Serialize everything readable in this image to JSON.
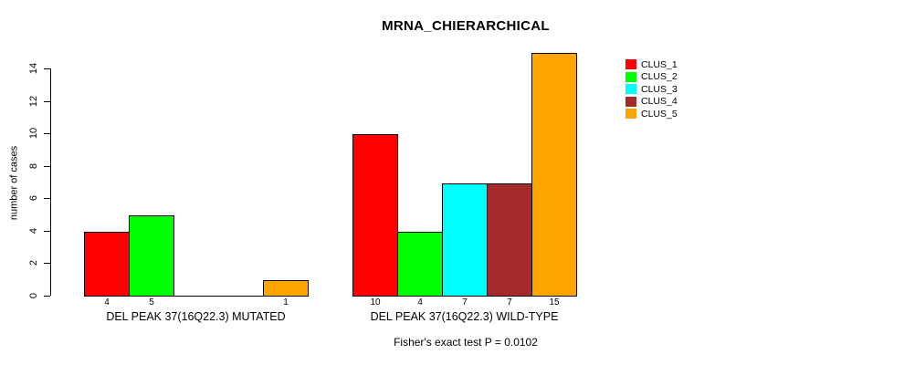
{
  "chart_data": {
    "type": "bar",
    "title": "MRNA_CHIERARCHICAL",
    "ylabel": "number of cases",
    "ylim": [
      0,
      15
    ],
    "yticks": [
      0,
      2,
      4,
      6,
      8,
      10,
      12,
      14
    ],
    "grid": false,
    "legend_position": "right",
    "bar_outline_color": "#000000",
    "series": [
      {
        "name": "CLUS_1",
        "color": "#FF0000"
      },
      {
        "name": "CLUS_2",
        "color": "#00FF00"
      },
      {
        "name": "CLUS_3",
        "color": "#00FFFF"
      },
      {
        "name": "CLUS_4",
        "color": "#A52A2A"
      },
      {
        "name": "CLUS_5",
        "color": "#FFA500"
      }
    ],
    "groups": [
      {
        "label": "DEL PEAK 37(16Q22.3) MUTATED",
        "values": [
          4,
          5,
          0,
          0,
          1
        ]
      },
      {
        "label": "DEL PEAK 37(16Q22.3) WILD-TYPE",
        "values": [
          10,
          4,
          7,
          7,
          15
        ]
      }
    ],
    "annotation": "Fisher's exact test P = 0.0102"
  }
}
